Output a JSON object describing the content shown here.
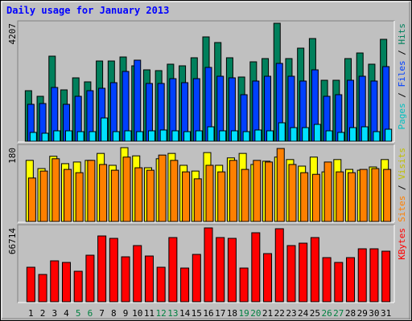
{
  "title": "Daily usage for January 2013",
  "chart_data": [
    {
      "type": "bar",
      "ylim": [
        0,
        4207
      ],
      "yticks": [
        4207
      ],
      "legend_separator": " / ",
      "series": [
        {
          "name": "Hits",
          "color": "#00805c",
          "label_color": "#00805c",
          "values": [
            1803,
            1603,
            3034,
            1832,
            2261,
            2118,
            2862,
            2862,
            3005,
            2690,
            2547,
            2519,
            2748,
            2690,
            2977,
            3721,
            3520,
            2977,
            2290,
            2833,
            2948,
            4207,
            2948,
            3320,
            3663,
            2175,
            2175,
            2948,
            3148,
            2748,
            3635
          ]
        },
        {
          "name": "Files",
          "color": "#0040ff",
          "label_color": "#0040ff",
          "values": [
            1317,
            1345,
            1918,
            1317,
            1603,
            1803,
            1889,
            2089,
            2490,
            2891,
            2061,
            2061,
            2232,
            2089,
            2232,
            2633,
            2318,
            2261,
            1660,
            2147,
            2318,
            2776,
            2318,
            2147,
            2547,
            1603,
            1660,
            2175,
            2318,
            2147,
            2662
          ]
        },
        {
          "name": "Pages",
          "color": "#00e0ff",
          "label_color": "#00c0c0",
          "values": [
            315,
            286,
            372,
            372,
            343,
            343,
            830,
            343,
            372,
            343,
            372,
            401,
            372,
            343,
            372,
            515,
            372,
            372,
            343,
            401,
            372,
            658,
            486,
            486,
            601,
            372,
            315,
            486,
            515,
            343,
            429
          ]
        }
      ]
    },
    {
      "type": "bar",
      "ylim": [
        0,
        180
      ],
      "yticks": [
        180
      ],
      "legend_separator": " / ",
      "series": [
        {
          "name": "Visits",
          "color": "#ffff00",
          "label_color": "#c0c000",
          "values": [
            149,
            129,
            159,
            141,
            145,
            149,
            166,
            137,
            180,
            160,
            131,
            153,
            166,
            137,
            123,
            168,
            137,
            155,
            166,
            139,
            147,
            157,
            151,
            135,
            157,
            121,
            151,
            127,
            125,
            133,
            151
          ]
        },
        {
          "name": "Sites",
          "color": "#ff8000",
          "label_color": "#ff8000",
          "values": [
            106,
            123,
            153,
            127,
            119,
            149,
            139,
            125,
            157,
            131,
            125,
            162,
            149,
            121,
            104,
            137,
            121,
            149,
            127,
            149,
            145,
            178,
            139,
            119,
            115,
            145,
            121,
            119,
            127,
            129,
            127
          ]
        }
      ]
    },
    {
      "type": "bar",
      "ylim": [
        0,
        66714
      ],
      "yticks": [
        66714
      ],
      "legend_separator": " / ",
      "series": [
        {
          "name": "KBytes",
          "color": "#ff0000",
          "label_color": "#ff0000",
          "values": [
            31175,
            24650,
            36975,
            35525,
            27550,
            42050,
            59450,
            57275,
            40600,
            50750,
            41325,
            31175,
            58000,
            30450,
            42775,
            66714,
            58000,
            57275,
            30450,
            62350,
            43500,
            65975,
            50750,
            52925,
            58000,
            39875,
            35525,
            39875,
            47850,
            47850,
            45675
          ]
        }
      ],
      "categories": [
        "1",
        "2",
        "3",
        "4",
        "5",
        "6",
        "7",
        "8",
        "9",
        "10",
        "11",
        "12",
        "13",
        "14",
        "15",
        "16",
        "17",
        "18",
        "19",
        "20",
        "21",
        "22",
        "23",
        "24",
        "25",
        "26",
        "27",
        "28",
        "29",
        "30",
        "31"
      ],
      "label_colors": [
        "#000",
        "#000",
        "#000",
        "#000",
        "#008040",
        "#008040",
        "#000",
        "#000",
        "#000",
        "#000",
        "#000",
        "#008040",
        "#008040",
        "#000",
        "#000",
        "#000",
        "#000",
        "#000",
        "#008040",
        "#008040",
        "#000",
        "#000",
        "#000",
        "#000",
        "#000",
        "#008040",
        "#008040",
        "#000",
        "#000",
        "#000",
        "#000"
      ]
    }
  ]
}
